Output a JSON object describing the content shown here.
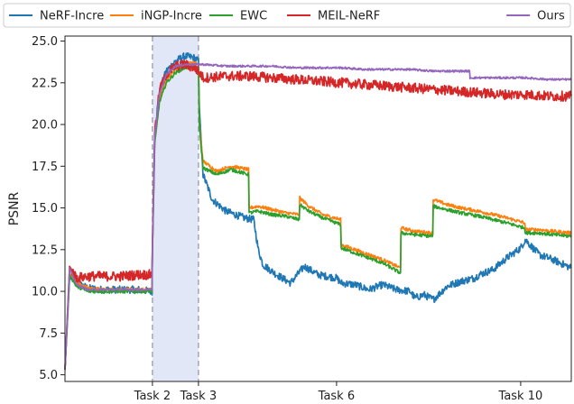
{
  "chart_data": {
    "type": "line",
    "ylabel": "PSNR",
    "xlabel": "",
    "ylim": [
      4.6,
      25.3
    ],
    "xlim": [
      0,
      11
    ],
    "yticks": [
      5.0,
      7.5,
      10.0,
      12.5,
      15.0,
      17.5,
      20.0,
      22.5,
      25.0
    ],
    "ytick_labels": [
      "5.0",
      "7.5",
      "10.0",
      "12.5",
      "15.0",
      "17.5",
      "20.0",
      "22.5",
      "25.0"
    ],
    "xticks": [
      {
        "value": 1.9,
        "label": "Task 2"
      },
      {
        "value": 2.9,
        "label": "Task 3"
      },
      {
        "value": 5.9,
        "label": "Task 6"
      },
      {
        "value": 9.9,
        "label": "Task 10"
      }
    ],
    "shaded_region": [
      1.9,
      2.9
    ],
    "grid": false,
    "legend_position": "top",
    "series": [
      {
        "name": "NeRF-Incre",
        "color": "#1f77b4",
        "x": [
          0,
          0.1,
          0.25,
          0.5,
          0.8,
          1.2,
          1.6,
          1.89,
          1.9,
          1.95,
          2.05,
          2.2,
          2.4,
          2.6,
          2.8,
          2.9,
          2.92,
          3.0,
          3.2,
          3.5,
          3.7,
          3.9,
          4.1,
          4.2,
          4.3,
          4.6,
          4.9,
          5.2,
          5.5,
          5.9,
          6.0,
          6.3,
          6.6,
          6.9,
          7.2,
          7.5,
          7.6,
          7.8,
          8.0,
          8.3,
          8.6,
          8.9,
          9.0,
          9.3,
          9.6,
          9.9,
          10.0,
          10.3,
          10.6,
          11.0
        ],
        "values": [
          5.3,
          10.8,
          10.5,
          10.2,
          10.1,
          10.1,
          10.1,
          10.0,
          12.5,
          19.5,
          22.0,
          23.2,
          23.8,
          24.1,
          24.0,
          23.8,
          21.0,
          17.0,
          15.5,
          14.8,
          14.6,
          14.4,
          14.3,
          12.5,
          11.6,
          11.0,
          10.5,
          11.5,
          11.0,
          10.8,
          10.5,
          10.4,
          10.1,
          10.4,
          10.1,
          10.0,
          9.6,
          9.8,
          9.5,
          10.3,
          10.6,
          10.8,
          11.0,
          11.3,
          12.0,
          12.6,
          13.1,
          12.2,
          11.9,
          11.4
        ]
      },
      {
        "name": "iNGP-Incre",
        "color": "#ff7f0e",
        "x": [
          0,
          0.1,
          0.25,
          0.5,
          0.8,
          1.2,
          1.6,
          1.89,
          1.9,
          1.95,
          2.05,
          2.2,
          2.4,
          2.6,
          2.8,
          2.9,
          2.92,
          3.0,
          3.3,
          3.6,
          3.99,
          4.0,
          4.2,
          4.5,
          4.8,
          5.09,
          5.1,
          5.3,
          5.6,
          5.99,
          6.0,
          6.3,
          6.6,
          6.9,
          7.29,
          7.3,
          7.6,
          7.99,
          8.0,
          8.3,
          8.6,
          9.0,
          9.3,
          9.6,
          9.99,
          10.0,
          10.3,
          10.6,
          11.0
        ],
        "values": [
          5.3,
          11.1,
          10.5,
          10.2,
          10.1,
          10.1,
          10.1,
          10.1,
          12.5,
          19.0,
          21.5,
          22.7,
          23.3,
          23.6,
          23.7,
          23.6,
          20.0,
          17.8,
          17.2,
          17.5,
          17.3,
          15.0,
          15.1,
          14.9,
          14.7,
          14.6,
          15.6,
          15.1,
          14.6,
          14.3,
          12.8,
          12.5,
          12.2,
          11.9,
          11.4,
          13.8,
          13.6,
          13.5,
          15.5,
          15.2,
          15.0,
          14.8,
          14.6,
          14.4,
          14.1,
          13.7,
          13.7,
          13.6,
          13.5
        ]
      },
      {
        "name": "EWC",
        "color": "#2ca02c",
        "x": [
          0,
          0.1,
          0.25,
          0.5,
          0.8,
          1.2,
          1.6,
          1.89,
          1.9,
          1.95,
          2.05,
          2.2,
          2.4,
          2.6,
          2.8,
          2.9,
          2.92,
          3.0,
          3.3,
          3.6,
          3.99,
          4.0,
          4.2,
          4.5,
          4.8,
          5.09,
          5.1,
          5.3,
          5.6,
          5.99,
          6.0,
          6.3,
          6.6,
          6.9,
          7.29,
          7.3,
          7.6,
          7.99,
          8.0,
          8.3,
          8.6,
          9.0,
          9.3,
          9.6,
          9.99,
          10.0,
          10.3,
          10.6,
          11.0
        ],
        "values": [
          5.3,
          11.0,
          10.3,
          10.0,
          10.0,
          10.0,
          10.0,
          10.0,
          12.4,
          18.8,
          21.3,
          22.5,
          23.1,
          23.4,
          23.5,
          23.4,
          19.8,
          17.4,
          17.0,
          17.3,
          17.0,
          14.7,
          14.8,
          14.6,
          14.5,
          14.3,
          15.2,
          14.8,
          14.4,
          14.0,
          12.6,
          12.3,
          12.0,
          11.7,
          11.1,
          13.5,
          13.4,
          13.3,
          15.1,
          14.9,
          14.7,
          14.5,
          14.3,
          14.1,
          13.8,
          13.5,
          13.5,
          13.4,
          13.3
        ]
      },
      {
        "name": "MEIL-NeRF",
        "color": "#d62728",
        "x": [
          0,
          0.1,
          0.25,
          0.5,
          0.8,
          1.2,
          1.6,
          1.89,
          1.9,
          1.95,
          2.05,
          2.2,
          2.4,
          2.6,
          2.8,
          2.9,
          3.0,
          3.5,
          4.0,
          4.5,
          5.0,
          5.5,
          6.0,
          6.5,
          7.0,
          7.5,
          8.0,
          8.5,
          9.0,
          9.5,
          10.0,
          10.5,
          11.0
        ],
        "values": [
          5.3,
          11.5,
          10.8,
          10.9,
          10.9,
          10.9,
          11.0,
          11.0,
          13.0,
          19.5,
          22.0,
          23.0,
          23.5,
          23.6,
          23.4,
          23.2,
          22.8,
          22.9,
          22.9,
          22.8,
          22.7,
          22.6,
          22.5,
          22.4,
          22.3,
          22.2,
          22.1,
          22.0,
          21.9,
          21.8,
          21.8,
          21.7,
          21.7
        ]
      },
      {
        "name": "Ours",
        "color": "#9467bd",
        "x": [
          0,
          0.1,
          0.25,
          0.5,
          0.8,
          1.2,
          1.6,
          1.89,
          1.9,
          1.95,
          2.05,
          2.2,
          2.4,
          2.6,
          2.8,
          2.9,
          3.0,
          3.5,
          4.0,
          4.5,
          5.0,
          5.5,
          6.0,
          6.5,
          7.0,
          7.5,
          8.0,
          8.5,
          8.79,
          8.8,
          9.5,
          10.0,
          10.5,
          11.0
        ],
        "values": [
          5.3,
          11.4,
          10.4,
          10.1,
          10.1,
          10.1,
          10.1,
          10.1,
          12.6,
          19.2,
          21.8,
          23.0,
          23.5,
          23.6,
          23.6,
          23.6,
          23.6,
          23.5,
          23.5,
          23.5,
          23.4,
          23.4,
          23.4,
          23.3,
          23.3,
          23.3,
          23.2,
          23.2,
          23.2,
          22.8,
          22.8,
          22.8,
          22.7,
          22.7
        ]
      }
    ]
  }
}
